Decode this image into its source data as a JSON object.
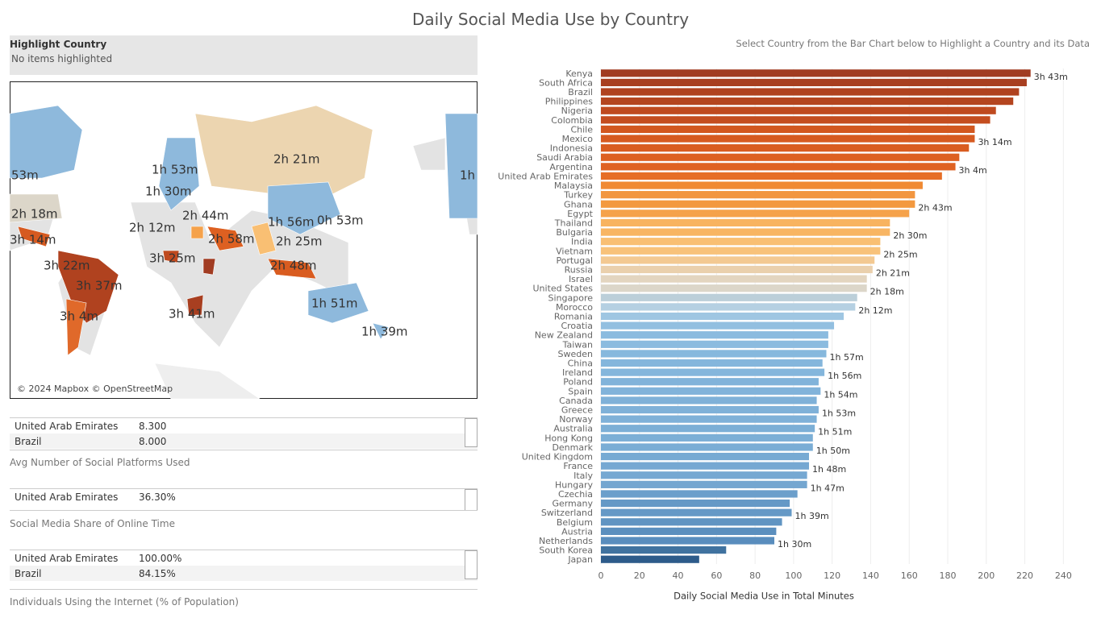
{
  "title": "Daily Social Media Use by Country",
  "subtitle": "Select Country from the Bar Chart below to Highlight a Country and its Data",
  "highlight": {
    "label": "Highlight Country",
    "placeholder": "No items highlighted"
  },
  "map": {
    "labels": [
      "2h 21m",
      "1h 53m",
      "1h 30m",
      "2h 44m",
      "2h 18m",
      "2h 12m",
      "1h 56m",
      "0h 53m",
      "3h 14m",
      "2h 58m",
      "2h 25m",
      "3h 25m",
      "3h 22m",
      "2h 48m",
      "3h 37m",
      "1h 51m",
      "3h 4m",
      "3h 41m",
      "1h 39m",
      "53m",
      "1h"
    ],
    "attribution": "© 2024 Mapbox © OpenStreetMap"
  },
  "tables": [
    {
      "rows": [
        [
          "United Arab Emirates",
          "8.300"
        ],
        [
          "Brazil",
          "8.000"
        ]
      ],
      "caption": "Avg Number of Social Platforms Used"
    },
    {
      "rows": [
        [
          "United Arab Emirates",
          "36.30%"
        ]
      ],
      "caption": "Social Media Share of Online Time"
    },
    {
      "rows": [
        [
          "United Arab Emirates",
          "100.00%"
        ],
        [
          "Brazil",
          "84.15%"
        ]
      ],
      "caption": "Individuals Using the Internet (% of Population)"
    }
  ],
  "chart_data": {
    "type": "hbar",
    "x_label": "Daily Social Media Use in Total Minutes",
    "categories": [
      "Kenya",
      "South Africa",
      "Brazil",
      "Philippines",
      "Nigeria",
      "Colombia",
      "Chile",
      "Mexico",
      "Indonesia",
      "Saudi Arabia",
      "Argentina",
      "United Arab Emirates",
      "Malaysia",
      "Turkey",
      "Ghana",
      "Egypt",
      "Thailand",
      "Bulgaria",
      "India",
      "Vietnam",
      "Portugal",
      "Russia",
      "Israel",
      "United States",
      "Singapore",
      "Morocco",
      "Romania",
      "Croatia",
      "New Zealand",
      "Taiwan",
      "Sweden",
      "China",
      "Ireland",
      "Poland",
      "Spain",
      "Canada",
      "Greece",
      "Norway",
      "Australia",
      "Hong Kong",
      "Denmark",
      "United Kingdom",
      "France",
      "Italy",
      "Hungary",
      "Czechia",
      "Germany",
      "Switzerland",
      "Belgium",
      "Austria",
      "Netherlands",
      "South Korea",
      "Japan"
    ],
    "values": [
      223,
      221,
      217,
      214,
      205,
      202,
      194,
      194,
      191,
      186,
      184,
      177,
      167,
      163,
      163,
      160,
      150,
      150,
      145,
      145,
      142,
      141,
      138,
      138,
      133,
      132,
      126,
      121,
      118,
      118,
      117,
      115,
      116,
      113,
      114,
      112,
      113,
      112,
      111,
      110,
      110,
      108,
      108,
      107,
      107,
      102,
      98,
      99,
      94,
      91,
      90,
      65,
      51
    ],
    "value_labels": [
      "3h 43m",
      null,
      null,
      null,
      null,
      null,
      null,
      "3h 14m",
      null,
      null,
      "3h 4m",
      null,
      null,
      null,
      "2h 43m",
      null,
      null,
      "2h 30m",
      null,
      "2h 25m",
      null,
      "2h 21m",
      null,
      "2h 18m",
      null,
      "2h 12m",
      null,
      null,
      null,
      null,
      "1h 57m",
      null,
      "1h 56m",
      null,
      "1h 54m",
      null,
      "1h 53m",
      null,
      "1h 51m",
      null,
      "1h 50m",
      null,
      "1h 48m",
      null,
      "1h 47m",
      null,
      null,
      "1h 39m",
      null,
      null,
      "1h 30m",
      null,
      null
    ],
    "colors": [
      "#a13c22",
      "#a83f20",
      "#b0421f",
      "#b4451f",
      "#bf4a1f",
      "#c44d1f",
      "#d2571f",
      "#d65a20",
      "#d95c20",
      "#dd6021",
      "#df6222",
      "#e66e26",
      "#f08a33",
      "#f29640",
      "#f3993f",
      "#f5a24b",
      "#f8b360",
      "#f8b563",
      "#f9bf73",
      "#f8c27a",
      "#f3c992",
      "#ead0ad",
      "#e3d5c0",
      "#dcd6c9",
      "#bccfd9",
      "#b5d0e2",
      "#9fc6e2",
      "#92bfe0",
      "#8bbbdf",
      "#8bbbdf",
      "#86b8dd",
      "#84b6dc",
      "#84b6dc",
      "#81b3da",
      "#81b3da",
      "#7fb1d8",
      "#7fb1d8",
      "#7fb1d8",
      "#7cafd6",
      "#7cafd6",
      "#7aadd5",
      "#77aad3",
      "#76a8d2",
      "#76a8d2",
      "#74a6d0",
      "#6c9fcb",
      "#6599c6",
      "#6599c6",
      "#6094c2",
      "#5b8fbe",
      "#598dbd",
      "#40729f",
      "#2d5b8a"
    ],
    "xlim": [
      0,
      252
    ],
    "xticks": [
      0,
      20,
      40,
      60,
      80,
      100,
      120,
      140,
      160,
      180,
      200,
      220,
      240
    ],
    "grid": true
  }
}
